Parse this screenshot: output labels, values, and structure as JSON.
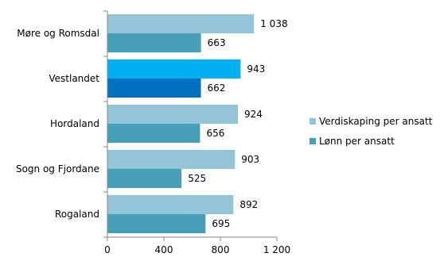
{
  "chart_data": {
    "type": "bar",
    "orientation": "horizontal",
    "categories": [
      "Møre og Romsdal",
      "Vestlandet",
      "Hordaland",
      "Sogn og Fjordane",
      "Rogaland"
    ],
    "series": [
      {
        "name": "Verdiskaping per ansatt",
        "values": [
          1038,
          943,
          924,
          903,
          892
        ],
        "value_labels": [
          "1 038",
          "943",
          "924",
          "903",
          "892"
        ]
      },
      {
        "name": "Lønn per ansatt",
        "values": [
          663,
          662,
          656,
          525,
          695
        ],
        "value_labels": [
          "663",
          "662",
          "656",
          "525",
          "695"
        ]
      }
    ],
    "xlim": [
      0,
      1200
    ],
    "xticks": [
      0,
      400,
      800,
      1200
    ],
    "xtick_labels": [
      "0",
      "400",
      "800",
      "1 200"
    ],
    "title": "",
    "xlabel": "",
    "ylabel": "",
    "grid": false,
    "legend_position": "right",
    "colors": {
      "series1": "#93c4d8",
      "series2": "#479fb8",
      "highlight_series1": "#00b0f0",
      "highlight_series2": "#0070c0"
    },
    "highlight_category": "Vestlandet"
  }
}
